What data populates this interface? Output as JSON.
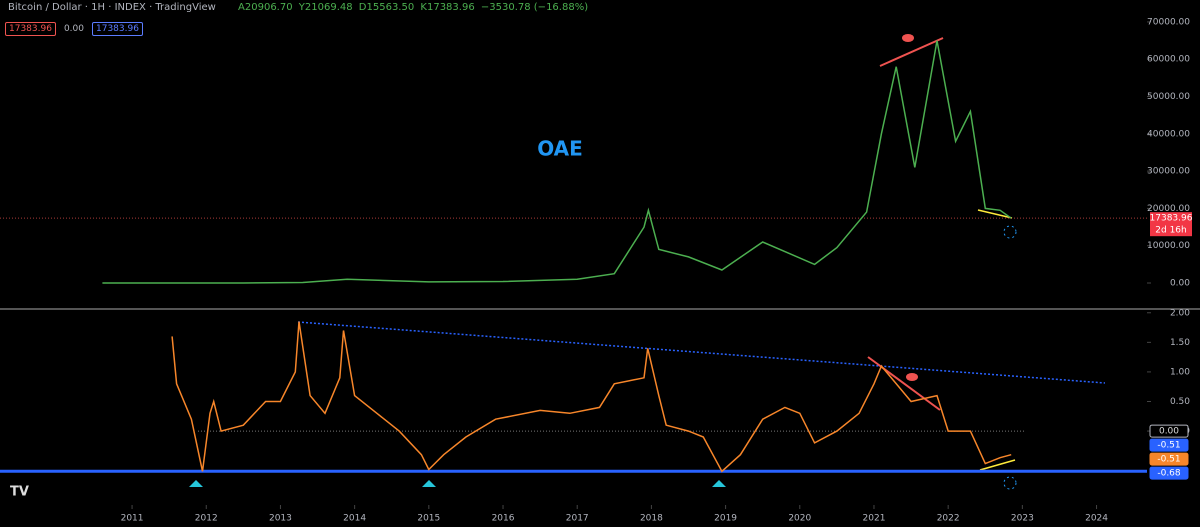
{
  "header": {
    "symbol": "Bitcoin / Dollar · 1H · INDEX · TradingView",
    "open": "A20906.70",
    "high": "Y21069.48",
    "low": "D15563.50",
    "close": "K17383.96",
    "change": "−3530.78 (−16.88%)",
    "tags": [
      "17383.96",
      "0.00",
      "17383.96"
    ]
  },
  "chart_data": [
    {
      "type": "line",
      "annotation": "OAE",
      "color": "#4caf50",
      "x": [
        2010.6,
        2011.5,
        2012.5,
        2013.3,
        2013.9,
        2015.0,
        2016.0,
        2017.0,
        2017.5,
        2017.9,
        2017.96,
        2018.1,
        2018.5,
        2018.95,
        2019.5,
        2020.2,
        2020.5,
        2020.9,
        2021.1,
        2021.3,
        2021.55,
        2021.85,
        2022.1,
        2022.3,
        2022.5,
        2022.7,
        2022.85
      ],
      "values": [
        0.1,
        15,
        10,
        130,
        1000,
        300,
        400,
        1000,
        2500,
        15000,
        19500,
        9000,
        7000,
        3500,
        11000,
        5000,
        9500,
        19000,
        40000,
        58000,
        31000,
        65000,
        38000,
        46000,
        20000,
        19500,
        17383.96
      ],
      "xlim": [
        2009.22,
        2024.68
      ],
      "ylim": [
        -6700,
        73200
      ],
      "yticks": [
        {
          "value": 0,
          "label": "0.00"
        },
        {
          "value": 10000,
          "label": "10000.00"
        },
        {
          "value": 20000,
          "label": "20000.00"
        },
        {
          "value": 30000,
          "label": "30000.00"
        },
        {
          "value": 40000,
          "label": "40000.00"
        },
        {
          "value": 50000,
          "label": "50000.00"
        },
        {
          "value": 60000,
          "label": "60000.00"
        },
        {
          "value": 70000,
          "label": "70000.00"
        }
      ],
      "last_price": 17383.96,
      "countdown": "2d 16h"
    },
    {
      "type": "line",
      "color": "#f7862a",
      "x": [
        2011.54,
        2011.6,
        2011.8,
        2011.95,
        2012.05,
        2012.1,
        2012.2,
        2012.5,
        2012.8,
        2013.0,
        2013.2,
        2013.25,
        2013.4,
        2013.6,
        2013.8,
        2013.85,
        2014.0,
        2014.3,
        2014.6,
        2014.9,
        2015.0,
        2015.2,
        2015.5,
        2015.9,
        2016.5,
        2016.9,
        2017.3,
        2017.5,
        2017.9,
        2017.95,
        2018.1,
        2018.2,
        2018.5,
        2018.7,
        2018.95,
        2019.2,
        2019.5,
        2019.8,
        2020.0,
        2020.2,
        2020.5,
        2020.8,
        2021.0,
        2021.1,
        2021.5,
        2021.85,
        2022.0,
        2022.3,
        2022.5,
        2022.7,
        2022.85
      ],
      "values": [
        1.6,
        0.8,
        0.2,
        -0.68,
        0.3,
        0.5,
        0.0,
        0.1,
        0.5,
        0.5,
        1.0,
        1.85,
        0.6,
        0.3,
        0.9,
        1.7,
        0.6,
        0.3,
        0.0,
        -0.4,
        -0.65,
        -0.4,
        -0.1,
        0.2,
        0.35,
        0.3,
        0.4,
        0.8,
        0.9,
        1.4,
        0.6,
        0.1,
        0.0,
        -0.1,
        -0.68,
        -0.4,
        0.2,
        0.4,
        0.3,
        -0.2,
        0.0,
        0.3,
        0.8,
        1.1,
        0.5,
        0.6,
        0.0,
        0.0,
        -0.55,
        -0.45,
        -0.4
      ],
      "xlim": [
        2009.22,
        2024.68
      ],
      "ylim": [
        -1.25,
        2.03
      ],
      "yticks": [
        {
          "value": 0,
          "label": "0.00"
        },
        {
          "value": 0.5,
          "label": "0.50"
        },
        {
          "value": 1,
          "label": "1.00"
        },
        {
          "value": 1.5,
          "label": "1.50"
        },
        {
          "value": 2,
          "label": "2.00"
        }
      ],
      "xticks": [
        2011,
        2012,
        2013,
        2014,
        2015,
        2016,
        2017,
        2018,
        2019,
        2020,
        2021,
        2022,
        2023,
        2024
      ],
      "floor": -0.68,
      "tags": [
        {
          "value": 0,
          "label": "0.00",
          "color": "#b2b5be"
        },
        {
          "value": -0.51,
          "label": "-0.51",
          "color": "#2962ff"
        },
        {
          "value": -0.51,
          "label": "-0.51",
          "color": "#f7862a"
        },
        {
          "value": -0.68,
          "label": "-0.68",
          "color": "#2962ff"
        }
      ]
    }
  ]
}
